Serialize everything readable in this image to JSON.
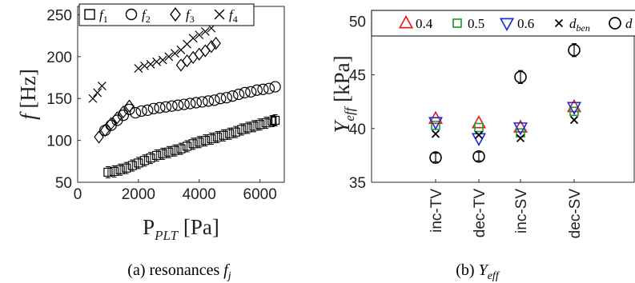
{
  "chart_data": [
    {
      "type": "scatter",
      "ylabel": "f [Hz]",
      "xlabel": "P_PLT [Pa]",
      "xlim": [
        0,
        6800
      ],
      "ylim": [
        50,
        260
      ],
      "xticks": [
        "0",
        "2000",
        "4000",
        "6000"
      ],
      "yticks": [
        "50",
        "100",
        "150",
        "200",
        "250"
      ],
      "legend": {
        "position": "top",
        "entries": [
          {
            "symbol": "square",
            "label": "f",
            "sub": "1"
          },
          {
            "symbol": "circle",
            "label": "f",
            "sub": "2"
          },
          {
            "symbol": "diamond",
            "label": "f",
            "sub": "3"
          },
          {
            "symbol": "cross",
            "label": "f",
            "sub": "4"
          }
        ]
      },
      "series": [
        {
          "name": "f1",
          "marker": "square",
          "error_bars": true,
          "x": [
            1000,
            1200,
            1400,
            1600,
            1800,
            2000,
            2200,
            2400,
            2600,
            2800,
            3000,
            3200,
            3400,
            3600,
            3800,
            4000,
            4200,
            4400,
            4600,
            4800,
            5000,
            5200,
            5400,
            5600,
            5800,
            6000,
            6200,
            6400,
            6500
          ],
          "y": [
            62,
            63,
            65,
            67,
            70,
            73,
            76,
            79,
            82,
            84,
            86,
            88,
            90,
            93,
            96,
            98,
            100,
            102,
            104,
            106,
            108,
            110,
            113,
            115,
            117,
            119,
            121,
            123,
            124
          ]
        },
        {
          "name": "f2",
          "marker": "circle",
          "error_bars": false,
          "x": [
            900,
            1100,
            1300,
            1500,
            1700,
            1900,
            2100,
            2300,
            2500,
            2700,
            2900,
            3100,
            3300,
            3500,
            3700,
            3900,
            4100,
            4300,
            4500,
            4700,
            4900,
            5100,
            5300,
            5500,
            5700,
            5900,
            6100,
            6300,
            6500
          ],
          "y": [
            112,
            118,
            124,
            130,
            137,
            133,
            135,
            136,
            138,
            139,
            140,
            141,
            142,
            143,
            144,
            145,
            146,
            147,
            148,
            150,
            151,
            153,
            155,
            157,
            158,
            160,
            161,
            162,
            164
          ]
        },
        {
          "name": "f3",
          "marker": "diamond",
          "error_bars": false,
          "x": [
            700,
            900,
            1100,
            1300,
            1500,
            1700,
            3400,
            3600,
            3800,
            4000,
            4200,
            4400,
            4550
          ],
          "y": [
            104,
            112,
            120,
            127,
            134,
            141,
            190,
            195,
            199,
            203,
            207,
            212,
            216
          ]
        },
        {
          "name": "f4",
          "marker": "cross",
          "error_bars": false,
          "x": [
            500,
            650,
            800,
            2000,
            2200,
            2400,
            2600,
            2800,
            3000,
            3200,
            3400,
            3600,
            3800,
            4000,
            4200,
            4400
          ],
          "y": [
            150,
            157,
            165,
            186,
            189,
            191,
            194,
            196,
            200,
            204,
            208,
            215,
            222,
            226,
            230,
            234
          ]
        }
      ]
    },
    {
      "type": "scatter",
      "ylabel": "Y_eff [kPa]",
      "ylim": [
        35,
        51
      ],
      "yticks": [
        "35",
        "40",
        "45",
        "50"
      ],
      "categories": [
        "inc-TV",
        "dec-TV",
        "inc-SV",
        "dec-SV"
      ],
      "legend": {
        "position": "top",
        "entries": [
          {
            "symbol": "triangle-up",
            "color": "#e0201b",
            "label": "0.4"
          },
          {
            "symbol": "square",
            "color": "#1fa02e",
            "label": "0.5"
          },
          {
            "symbol": "triangle-down",
            "color": "#1f2bd6",
            "label": "0.6"
          },
          {
            "symbol": "cross",
            "color": "#000000",
            "label": "d",
            "sub": "ben"
          },
          {
            "symbol": "circle",
            "color": "#000000",
            "label": "d"
          }
        ]
      },
      "series": [
        {
          "name": "0.4",
          "marker": "triangle-up",
          "color": "#e0201b",
          "values": [
            40.9,
            40.5,
            40.1,
            42.0
          ]
        },
        {
          "name": "0.5",
          "marker": "square",
          "color": "#1fa02e",
          "values": [
            40.3,
            40.1,
            39.6,
            41.6
          ]
        },
        {
          "name": "0.6",
          "marker": "triangle-down",
          "color": "#1f2bd6",
          "values": [
            40.6,
            39.1,
            40.1,
            42.0
          ]
        },
        {
          "name": "d_ben",
          "marker": "cross",
          "color": "#000000",
          "values": [
            39.5,
            39.4,
            39.1,
            40.8
          ]
        },
        {
          "name": "d",
          "marker": "circle",
          "color": "#000000",
          "values": [
            37.3,
            37.4,
            44.8,
            47.3
          ],
          "error": [
            0.4,
            0.4,
            0.6,
            0.6
          ]
        }
      ]
    }
  ],
  "captions": {
    "a_prefix": "(a) resonances ",
    "a_var": "f",
    "a_sub": "j",
    "b_prefix": "(b) ",
    "b_var": "Y",
    "b_sub": "eff"
  }
}
